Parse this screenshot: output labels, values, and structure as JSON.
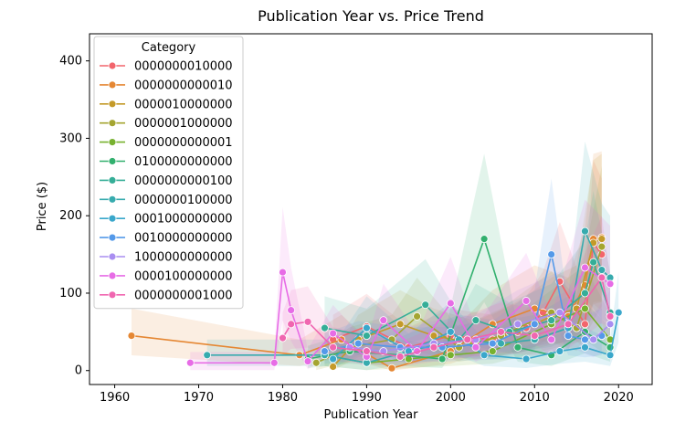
{
  "chart_data": {
    "type": "line",
    "title": "Publication Year vs. Price Trend",
    "xlabel": "Publication Year",
    "ylabel": "Price ($)",
    "xlim": [
      1957,
      2024
    ],
    "ylim": [
      -18,
      435
    ],
    "xticks": [
      1960,
      1970,
      1980,
      1990,
      2000,
      2010,
      2020
    ],
    "yticks": [
      0,
      100,
      200,
      300,
      400
    ],
    "grid": false,
    "legend_title": "Category",
    "legend_position": "upper-left",
    "series": [
      {
        "name": "0000000010000",
        "color": "#f2656c",
        "x": [
          1986,
          1990,
          1995,
          2000,
          2005,
          2009,
          2011,
          2013,
          2016,
          2017,
          2018
        ],
        "y": [
          40,
          57,
          30,
          45,
          40,
          55,
          75,
          115,
          60,
          165,
          150
        ]
      },
      {
        "name": "0000000000010",
        "color": "#e58733",
        "x": [
          1962,
          1982,
          1987,
          1993,
          2000,
          2005,
          2010,
          2014,
          2016,
          2017,
          2018
        ],
        "y": [
          45,
          20,
          40,
          3,
          25,
          60,
          80,
          70,
          110,
          170,
          172
        ]
      },
      {
        "name": "0000010000000",
        "color": "#c49a29",
        "x": [
          1986,
          1989,
          1994,
          1998,
          2003,
          2008,
          2012,
          2015,
          2017,
          2018
        ],
        "y": [
          5,
          40,
          60,
          45,
          35,
          50,
          70,
          80,
          165,
          170
        ]
      },
      {
        "name": "0000001000000",
        "color": "#a4a531",
        "x": [
          1984,
          1988,
          1993,
          1996,
          2001,
          2006,
          2012,
          2015,
          2018
        ],
        "y": [
          10,
          30,
          40,
          70,
          30,
          45,
          75,
          55,
          160
        ]
      },
      {
        "name": "0000000000001",
        "color": "#77b12f",
        "x": [
          1985,
          1990,
          1995,
          2000,
          2005,
          2012,
          2016,
          2019
        ],
        "y": [
          20,
          10,
          15,
          20,
          25,
          60,
          80,
          40
        ]
      },
      {
        "name": "0100000000000",
        "color": "#32b06e",
        "x": [
          1983,
          1988,
          1994,
          1999,
          2004,
          2008,
          2012,
          2016,
          2019
        ],
        "y": [
          15,
          25,
          20,
          15,
          170,
          30,
          20,
          50,
          30
        ]
      },
      {
        "name": "0000000000100",
        "color": "#35ae97",
        "x": [
          1985,
          1990,
          1997,
          2001,
          2003,
          2007,
          2012,
          2016,
          2017,
          2019
        ],
        "y": [
          55,
          45,
          85,
          40,
          65,
          50,
          65,
          100,
          140,
          75
        ]
      },
      {
        "name": "0000000100000",
        "color": "#37abae",
        "x": [
          1971,
          1985,
          1990,
          1995,
          2001,
          2006,
          2010,
          2014,
          2016,
          2018,
          2019
        ],
        "y": [
          20,
          20,
          10,
          25,
          40,
          35,
          40,
          55,
          180,
          130,
          120
        ]
      },
      {
        "name": "0001000000000",
        "color": "#3aa7cb",
        "x": [
          1986,
          1990,
          1995,
          2000,
          2004,
          2009,
          2013,
          2016,
          2019,
          2020
        ],
        "y": [
          15,
          55,
          25,
          50,
          20,
          15,
          25,
          30,
          20,
          75
        ]
      },
      {
        "name": "0010000000000",
        "color": "#5499e9",
        "x": [
          1985,
          1989,
          1994,
          1999,
          2005,
          2010,
          2012,
          2014,
          2016,
          2018
        ],
        "y": [
          25,
          35,
          30,
          30,
          35,
          60,
          150,
          45,
          40,
          45
        ]
      },
      {
        "name": "1000000000000",
        "color": "#a98ef1",
        "x": [
          1988,
          1992,
          1998,
          2003,
          2008,
          2013,
          2017,
          2019
        ],
        "y": [
          30,
          25,
          35,
          40,
          60,
          75,
          40,
          60
        ]
      },
      {
        "name": "0000100000000",
        "color": "#e76ce6",
        "x": [
          1969,
          1979,
          1980,
          1981,
          1983,
          1986,
          1990,
          1992,
          1996,
          2000,
          2003,
          2009,
          2012,
          2016,
          2019
        ],
        "y": [
          10,
          10,
          127,
          78,
          12,
          48,
          18,
          65,
          25,
          87,
          30,
          90,
          40,
          133,
          112
        ]
      },
      {
        "name": "0000000001000",
        "color": "#f066b0",
        "x": [
          1980,
          1981,
          1983,
          1986,
          1990,
          1994,
          1998,
          2002,
          2006,
          2010,
          2014,
          2018,
          2019
        ],
        "y": [
          42,
          60,
          63,
          30,
          25,
          18,
          30,
          40,
          50,
          45,
          60,
          120,
          70
        ]
      }
    ]
  }
}
